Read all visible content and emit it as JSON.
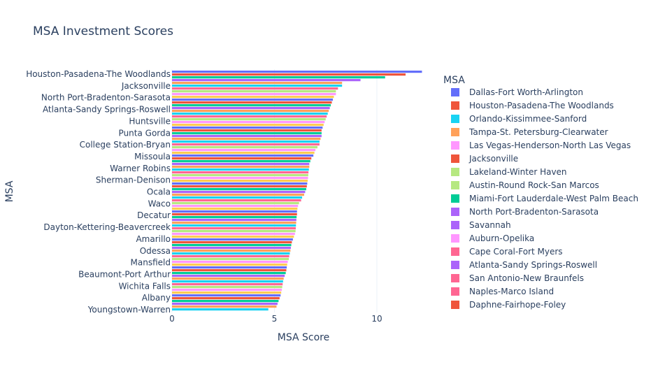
{
  "chart_data": {
    "type": "bar",
    "orientation": "horizontal",
    "title": "MSA Investment Scores",
    "xlabel": "MSA Score",
    "ylabel": "MSA",
    "xlim": [
      0,
      12.5
    ],
    "x_ticks": [
      0,
      5,
      10
    ],
    "grid": true,
    "legend_title": "MSA",
    "legend_position": "right",
    "y_tick_labels": [
      "Houston-Pasadena-The Woodlands",
      "Jacksonville",
      "North Port-Bradenton-Sarasota",
      "Atlanta-Sandy Springs-Roswell",
      "Huntsville",
      "Punta Gorda",
      "College Station-Bryan",
      "Missoula",
      "Warner Robins",
      "Sherman-Denison",
      "Ocala",
      "Waco",
      "Decatur",
      "Dayton-Kettering-Beavercreek",
      "Amarillo",
      "Odessa",
      "Mansfield",
      "Beaumont-Port Arthur",
      "Wichita Falls",
      "Albany",
      "Youngstown-Warren"
    ],
    "values": [
      12.2,
      11.4,
      10.4,
      9.2,
      8.3,
      8.3,
      8.1,
      8.0,
      8.0,
      7.9,
      7.85,
      7.8,
      7.75,
      7.7,
      7.65,
      7.6,
      7.55,
      7.5,
      7.45,
      7.4,
      7.35,
      7.3,
      7.3,
      7.3,
      7.25,
      7.2,
      7.2,
      7.1,
      7.0,
      6.95,
      6.9,
      6.8,
      6.75,
      6.7,
      6.7,
      6.68,
      6.66,
      6.65,
      6.64,
      6.62,
      6.6,
      6.58,
      6.55,
      6.5,
      6.45,
      6.35,
      6.3,
      6.2,
      6.15,
      6.12,
      6.1,
      6.1,
      6.08,
      6.07,
      6.06,
      6.05,
      6.04,
      6.03,
      6.0,
      5.95,
      5.9,
      5.85,
      5.82,
      5.8,
      5.78,
      5.75,
      5.72,
      5.7,
      5.65,
      5.62,
      5.6,
      5.58,
      5.55,
      5.5,
      5.45,
      5.42,
      5.4,
      5.38,
      5.36,
      5.33,
      5.3,
      5.25,
      5.2,
      5.15,
      5.1,
      4.7
    ],
    "bar_colors": [
      "#636efa",
      "#EF553B",
      "#00cc96",
      "#ab63fa",
      "#FFA15A",
      "#19d3f3",
      "#FF6692",
      "#B6E880",
      "#FF97FF",
      "#FECB52"
    ],
    "legend_entries": [
      {
        "name": "Dallas-Fort Worth-Arlington",
        "color": "#636efa"
      },
      {
        "name": "Houston-Pasadena-The Woodlands",
        "color": "#EF553B"
      },
      {
        "name": "Orlando-Kissimmee-Sanford",
        "color": "#19d3f3"
      },
      {
        "name": "Tampa-St. Petersburg-Clearwater",
        "color": "#FFA15A"
      },
      {
        "name": "Las Vegas-Henderson-North Las Vegas",
        "color": "#FF97FF"
      },
      {
        "name": "Jacksonville",
        "color": "#EF553B"
      },
      {
        "name": "Lakeland-Winter Haven",
        "color": "#B6E880"
      },
      {
        "name": "Austin-Round Rock-San Marcos",
        "color": "#B6E880"
      },
      {
        "name": "Miami-Fort Lauderdale-West Palm Beach",
        "color": "#00cc96"
      },
      {
        "name": "North Port-Bradenton-Sarasota",
        "color": "#ab63fa"
      },
      {
        "name": "Savannah",
        "color": "#ab63fa"
      },
      {
        "name": "Auburn-Opelika",
        "color": "#FF97FF"
      },
      {
        "name": "Cape Coral-Fort Myers",
        "color": "#FF6692"
      },
      {
        "name": "Atlanta-Sandy Springs-Roswell",
        "color": "#ab63fa"
      },
      {
        "name": "San Antonio-New Braunfels",
        "color": "#FF6692"
      },
      {
        "name": "Naples-Marco Island",
        "color": "#FF6692"
      },
      {
        "name": "Daphne-Fairhope-Foley",
        "color": "#EF553B"
      }
    ]
  }
}
